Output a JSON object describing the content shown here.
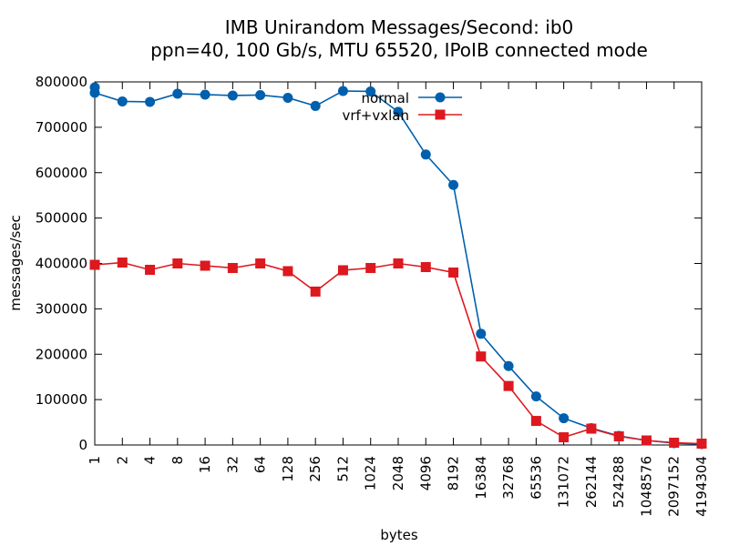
{
  "chart_data": {
    "type": "line",
    "title": "IMB Unirandom Messages/Second: ib0",
    "subtitle": "ppn=40, 100 Gb/s, MTU 65520, IPoIB connected mode",
    "xlabel": "bytes",
    "ylabel": "messages/sec",
    "categories": [
      "1",
      "2",
      "4",
      "8",
      "16",
      "32",
      "64",
      "128",
      "256",
      "512",
      "1024",
      "2048",
      "4096",
      "8192",
      "16384",
      "32768",
      "65536",
      "131072",
      "262144",
      "524288",
      "1048576",
      "2097152",
      "4194304"
    ],
    "ylim": [
      0,
      800000
    ],
    "yticks": [
      "0",
      "100000",
      "200000",
      "300000",
      "400000",
      "500000",
      "600000",
      "700000",
      "800000"
    ],
    "ytick_values": [
      0,
      100000,
      200000,
      300000,
      400000,
      500000,
      600000,
      700000,
      800000
    ],
    "grid": false,
    "legend_position": "top-right",
    "series": [
      {
        "name": "normal",
        "color": "#0060ad",
        "marker": "circle",
        "values": [
          776000,
          757000,
          756000,
          774000,
          772000,
          770000,
          771000,
          765000,
          747000,
          780000,
          779000,
          734000,
          640000,
          573000,
          245000,
          174000,
          107000,
          59000,
          37000,
          20000,
          10000,
          4000,
          2000
        ],
        "first_point_extra": 788000
      },
      {
        "name": "vrf+vxlan",
        "color": "#dd181f",
        "marker": "square",
        "values": [
          397000,
          402000,
          386000,
          400000,
          395000,
          390000,
          400000,
          383000,
          338000,
          385000,
          390000,
          400000,
          392000,
          380000,
          195000,
          130000,
          53000,
          17000,
          36000,
          19000,
          10000,
          5000,
          3000
        ]
      }
    ]
  }
}
